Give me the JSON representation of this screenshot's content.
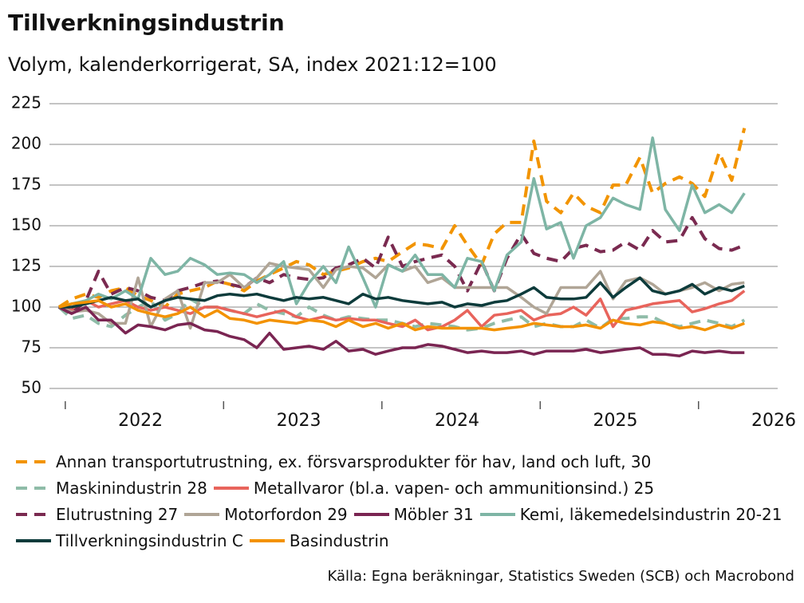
{
  "chart_data": {
    "type": "line",
    "title": "Tillverkningsindustrin",
    "subtitle": "Volym, kalenderkorrigerat, SA, index 2021:12=100",
    "source": "Källa: Egna beräkningar, Statistics Sweden (SCB) och Macrobond",
    "x": [
      2021.96,
      2022.04,
      2022.13,
      2022.21,
      2022.29,
      2022.38,
      2022.46,
      2022.54,
      2022.63,
      2022.71,
      2022.79,
      2022.88,
      2022.96,
      2023.04,
      2023.13,
      2023.21,
      2023.29,
      2023.38,
      2023.46,
      2023.54,
      2023.63,
      2023.71,
      2023.79,
      2023.88,
      2023.96,
      2024.04,
      2024.13,
      2024.21,
      2024.29,
      2024.38,
      2024.46,
      2024.54,
      2024.63,
      2024.71,
      2024.79,
      2024.88,
      2024.96,
      2025.04,
      2025.13,
      2025.21,
      2025.29,
      2025.38,
      2025.46,
      2025.54,
      2025.63,
      2025.71,
      2025.79,
      2025.88,
      2025.96,
      2026.04,
      2026.13,
      2026.21,
      2026.29
    ],
    "xlim": [
      2021.9,
      2026.5
    ],
    "xticks": [
      {
        "value": 2022.5,
        "label": "2022"
      },
      {
        "value": 2023.5,
        "label": "2023"
      },
      {
        "value": 2024.5,
        "label": "2024"
      },
      {
        "value": 2025.5,
        "label": "2025"
      },
      {
        "value": 2026.5,
        "label": "2026"
      }
    ],
    "ylim": [
      50,
      225
    ],
    "yticks": [
      50,
      75,
      100,
      125,
      150,
      175,
      200,
      225
    ],
    "grid": true,
    "series": [
      {
        "name": "Annan transportutrustning, ex. försvarsprodukter för hav, land och luft, 30",
        "color": "#f29400",
        "dashed": true,
        "values": [
          100,
          105,
          108,
          106,
          110,
          112,
          107,
          104,
          100,
          108,
          110,
          112,
          116,
          114,
          110,
          116,
          120,
          124,
          128,
          126,
          120,
          122,
          124,
          128,
          130,
          128,
          134,
          139,
          138,
          136,
          150,
          138,
          126,
          145,
          152,
          152,
          202,
          165,
          158,
          170,
          162,
          158,
          175,
          175,
          192,
          170,
          176,
          180,
          176,
          168,
          195,
          178,
          210
        ]
      },
      {
        "name": "Maskinindustrin 28",
        "color": "#8fbca8",
        "dashed": true,
        "values": [
          100,
          93,
          95,
          90,
          88,
          95,
          100,
          104,
          92,
          96,
          105,
          100,
          100,
          98,
          96,
          102,
          98,
          96,
          94,
          100,
          95,
          92,
          94,
          93,
          92,
          92,
          90,
          88,
          90,
          89,
          88,
          86,
          87,
          90,
          92,
          94,
          88,
          90,
          88,
          88,
          92,
          87,
          93,
          93,
          94,
          94,
          90,
          88,
          90,
          92,
          90,
          88,
          92
        ]
      },
      {
        "name": "Metallvaror (bl.a. vapen- och ammunitionsind.) 25",
        "color": "#e8645c",
        "dashed": false,
        "values": [
          100,
          98,
          104,
          100,
          102,
          104,
          100,
          98,
          100,
          98,
          96,
          100,
          100,
          98,
          96,
          94,
          96,
          98,
          94,
          92,
          94,
          92,
          93,
          92,
          92,
          90,
          88,
          92,
          86,
          88,
          92,
          98,
          88,
          95,
          96,
          98,
          92,
          95,
          96,
          100,
          95,
          105,
          88,
          98,
          100,
          102,
          103,
          104,
          97,
          99,
          102,
          104,
          110
        ]
      },
      {
        "name": "Elutrustning 27",
        "color": "#7a2a50",
        "dashed": true,
        "values": [
          100,
          96,
          104,
          122,
          108,
          112,
          110,
          106,
          104,
          110,
          112,
          115,
          116,
          114,
          112,
          118,
          115,
          120,
          118,
          117,
          118,
          124,
          126,
          130,
          124,
          143,
          125,
          128,
          130,
          132,
          125,
          110,
          128,
          110,
          130,
          145,
          133,
          130,
          128,
          136,
          138,
          134,
          135,
          140,
          135,
          147,
          140,
          141,
          155,
          142,
          136,
          135,
          138
        ]
      },
      {
        "name": "Motorfordon 29",
        "color": "#b0a596",
        "dashed": false,
        "values": [
          100,
          97,
          98,
          96,
          90,
          90,
          118,
          88,
          105,
          110,
          87,
          115,
          115,
          120,
          112,
          118,
          127,
          125,
          124,
          123,
          112,
          123,
          125,
          124,
          118,
          126,
          122,
          125,
          115,
          118,
          112,
          112,
          112,
          112,
          112,
          106,
          100,
          96,
          112,
          112,
          112,
          122,
          105,
          116,
          118,
          114,
          108,
          110,
          112,
          115,
          110,
          114,
          115
        ]
      },
      {
        "name": "Möbler 31",
        "color": "#7a2552",
        "dashed": false,
        "values": [
          100,
          96,
          100,
          92,
          92,
          84,
          89,
          88,
          86,
          89,
          90,
          86,
          85,
          82,
          80,
          75,
          84,
          74,
          75,
          76,
          74,
          79,
          73,
          74,
          71,
          73,
          75,
          75,
          77,
          76,
          74,
          72,
          73,
          72,
          72,
          73,
          71,
          73,
          73,
          73,
          74,
          72,
          73,
          74,
          75,
          71,
          71,
          70,
          73,
          72,
          73,
          72,
          72
        ]
      },
      {
        "name": "Kemi, läkemedelsindustrin 20-21",
        "color": "#7eb5a5",
        "dashed": false,
        "values": [
          100,
          102,
          104,
          108,
          105,
          110,
          105,
          130,
          120,
          122,
          130,
          126,
          120,
          121,
          120,
          115,
          120,
          128,
          102,
          115,
          125,
          115,
          137,
          118,
          100,
          126,
          122,
          132,
          120,
          120,
          112,
          130,
          128,
          110,
          132,
          140,
          179,
          148,
          152,
          130,
          150,
          155,
          167,
          163,
          160,
          204,
          160,
          147,
          175,
          158,
          163,
          158,
          170
        ]
      },
      {
        "name": "Tillverkningsindustrin C",
        "color": "#0d3b3b",
        "dashed": false,
        "values": [
          100,
          100,
          102,
          104,
          106,
          104,
          105,
          100,
          104,
          106,
          105,
          104,
          107,
          108,
          107,
          108,
          106,
          104,
          106,
          105,
          106,
          104,
          102,
          108,
          105,
          106,
          104,
          103,
          102,
          103,
          100,
          102,
          101,
          103,
          104,
          108,
          112,
          106,
          105,
          105,
          106,
          115,
          106,
          112,
          118,
          110,
          108,
          110,
          114,
          108,
          112,
          110,
          113
        ]
      },
      {
        "name": "Basindustrin",
        "color": "#f39200",
        "dashed": false,
        "values": [
          100,
          102,
          103,
          104,
          100,
          102,
          98,
          96,
          94,
          96,
          100,
          94,
          98,
          93,
          92,
          90,
          92,
          91,
          90,
          92,
          91,
          88,
          92,
          88,
          90,
          87,
          90,
          86,
          88,
          87,
          87,
          87,
          87,
          86,
          87,
          88,
          90,
          89,
          88,
          88,
          89,
          87,
          92,
          90,
          89,
          91,
          90,
          87,
          88,
          86,
          89,
          87,
          90
        ]
      }
    ]
  }
}
